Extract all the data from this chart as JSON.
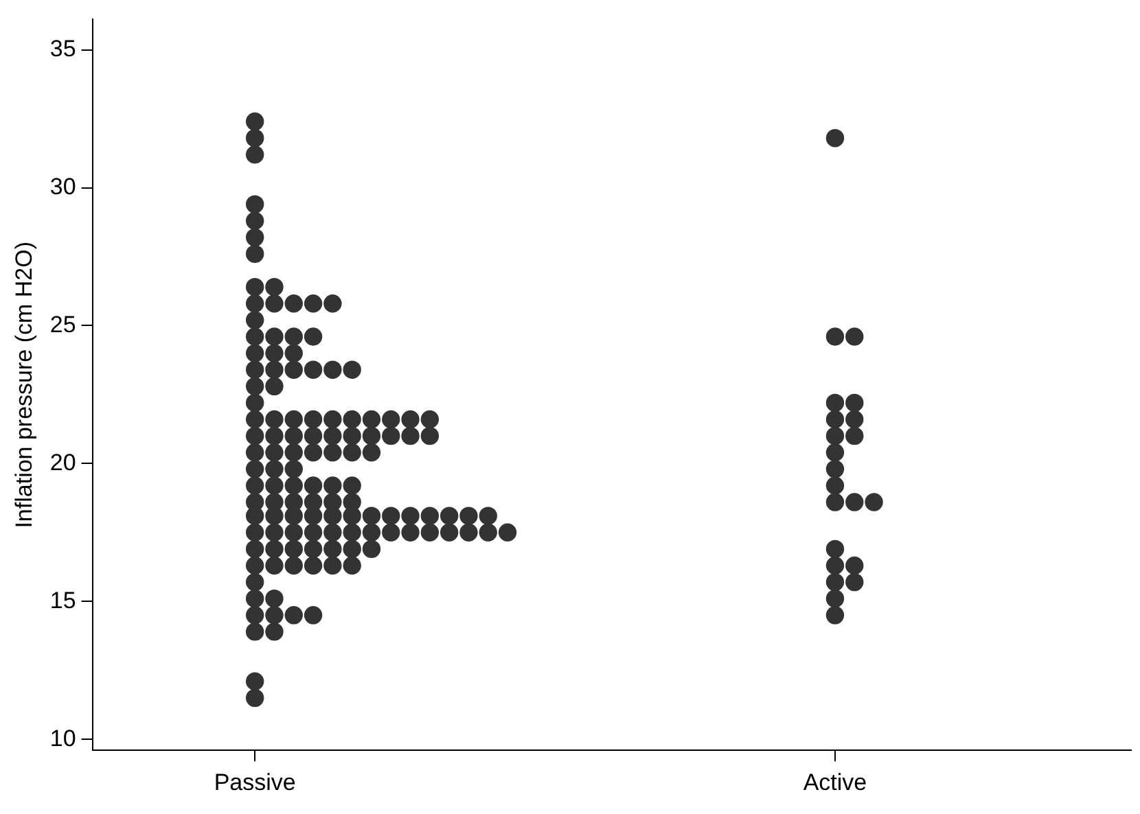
{
  "chart_data": {
    "type": "scatter",
    "ylabel": "Inflation pressure (cm H2O)",
    "categories": [
      "Passive",
      "Active"
    ],
    "ylim": [
      9.6,
      36.1
    ],
    "yticks": [
      10,
      15,
      20,
      25,
      30,
      35
    ],
    "grid": false,
    "legend": false,
    "marker": "circle",
    "series": [
      {
        "color": "#333333",
        "x": [
          "Passive",
          "Passive",
          "Passive",
          "Passive",
          "Passive",
          "Passive",
          "Passive",
          "Passive",
          "Passive",
          "Passive",
          "Passive",
          "Passive",
          "Passive",
          "Passive",
          "Passive",
          "Passive",
          "Passive",
          "Passive",
          "Passive",
          "Passive",
          "Passive",
          "Passive",
          "Passive",
          "Passive",
          "Passive",
          "Passive",
          "Passive",
          "Passive",
          "Passive",
          "Passive",
          "Passive",
          "Passive",
          "Passive",
          "Passive",
          "Passive",
          "Passive",
          "Passive",
          "Passive",
          "Passive",
          "Passive",
          "Passive",
          "Passive",
          "Passive",
          "Passive",
          "Passive",
          "Passive",
          "Passive",
          "Passive",
          "Passive",
          "Passive",
          "Passive",
          "Passive",
          "Passive",
          "Passive",
          "Passive",
          "Passive",
          "Passive",
          "Passive",
          "Passive",
          "Passive",
          "Passive",
          "Passive",
          "Passive",
          "Passive",
          "Passive",
          "Passive",
          "Passive",
          "Passive",
          "Passive",
          "Passive",
          "Passive",
          "Passive",
          "Passive",
          "Passive",
          "Passive",
          "Passive",
          "Passive",
          "Passive",
          "Passive",
          "Passive",
          "Passive",
          "Passive",
          "Passive",
          "Passive",
          "Passive",
          "Passive",
          "Passive",
          "Passive",
          "Passive",
          "Passive",
          "Passive",
          "Passive",
          "Passive",
          "Passive",
          "Passive",
          "Passive",
          "Passive",
          "Passive",
          "Passive",
          "Passive",
          "Passive",
          "Passive",
          "Passive",
          "Passive",
          "Passive",
          "Passive",
          "Passive",
          "Passive",
          "Passive",
          "Passive",
          "Passive",
          "Passive",
          "Passive",
          "Passive",
          "Passive",
          "Passive",
          "Passive",
          "Passive",
          "Passive",
          "Passive",
          "Passive",
          "Passive",
          "Passive",
          "Passive"
        ],
        "values": [
          32.4,
          31.8,
          31.2,
          29.4,
          28.8,
          28.2,
          27.6,
          26.4,
          26.4,
          25.8,
          25.8,
          25.8,
          25.8,
          25.8,
          25.2,
          24.6,
          24.6,
          24.6,
          24.6,
          24.0,
          24.0,
          24.0,
          23.4,
          23.4,
          23.4,
          23.4,
          23.4,
          23.4,
          22.8,
          22.8,
          22.2,
          21.6,
          21.6,
          21.6,
          21.6,
          21.6,
          21.6,
          21.6,
          21.6,
          21.6,
          21.6,
          21.0,
          21.0,
          21.0,
          21.0,
          21.0,
          21.0,
          21.0,
          21.0,
          21.0,
          21.0,
          20.4,
          20.4,
          20.4,
          20.4,
          20.4,
          20.4,
          20.4,
          19.8,
          19.8,
          19.8,
          19.2,
          19.2,
          19.2,
          19.2,
          19.2,
          19.2,
          18.6,
          18.6,
          18.6,
          18.6,
          18.6,
          18.6,
          18.1,
          18.1,
          18.1,
          18.1,
          18.1,
          18.1,
          18.1,
          18.1,
          18.1,
          18.1,
          18.1,
          18.1,
          18.1,
          17.5,
          17.5,
          17.5,
          17.5,
          17.5,
          17.5,
          17.5,
          17.5,
          17.5,
          17.5,
          17.5,
          17.5,
          17.5,
          17.5,
          16.9,
          16.9,
          16.9,
          16.9,
          16.9,
          16.9,
          16.9,
          16.3,
          16.3,
          16.3,
          16.3,
          16.3,
          16.3,
          15.7,
          15.1,
          15.1,
          14.5,
          14.5,
          14.5,
          14.5,
          13.9,
          13.9,
          12.1,
          11.5
        ]
      },
      {
        "color": "#333333",
        "x": [
          "Active",
          "Active",
          "Active",
          "Active",
          "Active",
          "Active",
          "Active",
          "Active",
          "Active",
          "Active",
          "Active",
          "Active",
          "Active",
          "Active",
          "Active",
          "Active",
          "Active",
          "Active",
          "Active",
          "Active",
          "Active",
          "Active"
        ],
        "values": [
          31.8,
          24.6,
          24.6,
          22.2,
          22.2,
          21.6,
          21.6,
          21.0,
          21.0,
          20.4,
          19.8,
          19.2,
          18.6,
          18.6,
          18.6,
          16.9,
          16.3,
          16.3,
          15.7,
          15.7,
          15.1,
          14.5
        ]
      }
    ]
  }
}
